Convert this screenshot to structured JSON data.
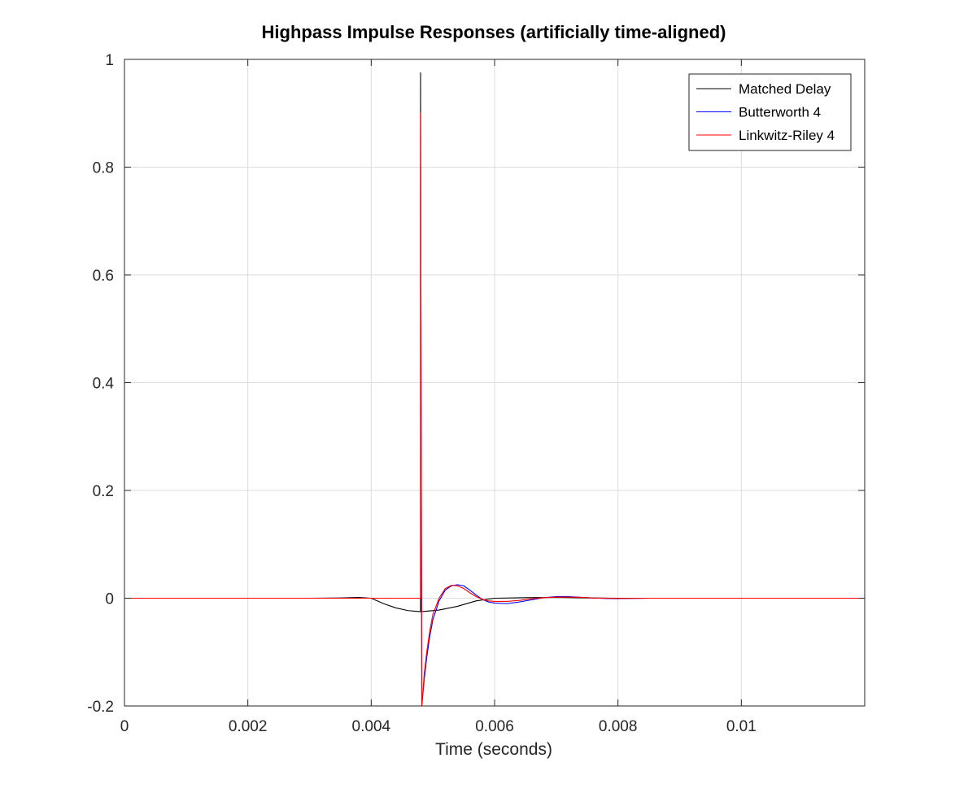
{
  "chart_data": {
    "type": "line",
    "title": "Highpass Impulse Responses (artificially time-aligned)",
    "xlabel": "Time (seconds)",
    "ylabel": "",
    "xlim": [
      0,
      0.012
    ],
    "ylim": [
      -0.2,
      1
    ],
    "grid": true,
    "legend_position": "top-right",
    "x_ticks": [
      0,
      0.002,
      0.004,
      0.006,
      0.008,
      0.01
    ],
    "x_tick_labels": [
      "0",
      "0.002",
      "0.004",
      "0.006",
      "0.008",
      "0.01"
    ],
    "y_ticks": [
      -0.2,
      0,
      0.2,
      0.4,
      0.6,
      0.8,
      1
    ],
    "y_tick_labels": [
      "-0.2",
      "0",
      "0.2",
      "0.4",
      "0.6",
      "0.8",
      "1"
    ],
    "series": [
      {
        "name": "Matched Delay",
        "color": "#000000",
        "points": [
          [
            0,
            0
          ],
          [
            0.003,
            0
          ],
          [
            0.0035,
            0.0005
          ],
          [
            0.0038,
            0.0015
          ],
          [
            0.004,
            0
          ],
          [
            0.0042,
            -0.01
          ],
          [
            0.0044,
            -0.018
          ],
          [
            0.0046,
            -0.023
          ],
          [
            0.0048,
            -0.025
          ],
          [
            0.0048,
            0.975
          ],
          [
            0.00481,
            -0.025
          ],
          [
            0.0051,
            -0.022
          ],
          [
            0.0054,
            -0.015
          ],
          [
            0.0057,
            -0.005
          ],
          [
            0.006,
            0
          ],
          [
            0.0065,
            0.001
          ],
          [
            0.007,
            0.0015
          ],
          [
            0.0075,
            0.0005
          ],
          [
            0.008,
            0
          ],
          [
            0.012,
            0
          ]
        ]
      },
      {
        "name": "Butterworth 4",
        "color": "#0000ff",
        "points": [
          [
            0,
            0
          ],
          [
            0.0048,
            0
          ],
          [
            0.0048,
            0.9
          ],
          [
            0.00482,
            -0.2
          ],
          [
            0.00486,
            -0.15
          ],
          [
            0.0049,
            -0.11
          ],
          [
            0.00495,
            -0.07
          ],
          [
            0.005,
            -0.04
          ],
          [
            0.0051,
            -0.005
          ],
          [
            0.0052,
            0.015
          ],
          [
            0.0053,
            0.023
          ],
          [
            0.0054,
            0.025
          ],
          [
            0.0055,
            0.023
          ],
          [
            0.0056,
            0.015
          ],
          [
            0.0057,
            0.006
          ],
          [
            0.0058,
            -0.002
          ],
          [
            0.0059,
            -0.007
          ],
          [
            0.006,
            -0.009
          ],
          [
            0.0062,
            -0.01
          ],
          [
            0.0064,
            -0.007
          ],
          [
            0.0066,
            -0.003
          ],
          [
            0.0068,
            0.001
          ],
          [
            0.007,
            0.003
          ],
          [
            0.0072,
            0.003
          ],
          [
            0.0075,
            0.001
          ],
          [
            0.0078,
            -0.0005
          ],
          [
            0.008,
            -0.0008
          ],
          [
            0.0085,
            0
          ],
          [
            0.012,
            0
          ]
        ]
      },
      {
        "name": "Linkwitz-Riley 4",
        "color": "#ff0000",
        "points": [
          [
            0,
            0
          ],
          [
            0.0048,
            0
          ],
          [
            0.0048,
            0.9
          ],
          [
            0.00482,
            -0.2
          ],
          [
            0.00486,
            -0.14
          ],
          [
            0.0049,
            -0.1
          ],
          [
            0.00495,
            -0.06
          ],
          [
            0.005,
            -0.03
          ],
          [
            0.0051,
            0
          ],
          [
            0.0052,
            0.018
          ],
          [
            0.0053,
            0.024
          ],
          [
            0.0054,
            0.023
          ],
          [
            0.0055,
            0.018
          ],
          [
            0.0056,
            0.01
          ],
          [
            0.0057,
            0.003
          ],
          [
            0.0058,
            -0.002
          ],
          [
            0.0059,
            -0.005
          ],
          [
            0.006,
            -0.006
          ],
          [
            0.0062,
            -0.006
          ],
          [
            0.0064,
            -0.004
          ],
          [
            0.0066,
            -0.001
          ],
          [
            0.0068,
            0.001
          ],
          [
            0.007,
            0.002
          ],
          [
            0.0073,
            0.002
          ],
          [
            0.0076,
            0.0005
          ],
          [
            0.008,
            -0.0005
          ],
          [
            0.0085,
            0
          ],
          [
            0.012,
            0
          ]
        ]
      }
    ]
  }
}
